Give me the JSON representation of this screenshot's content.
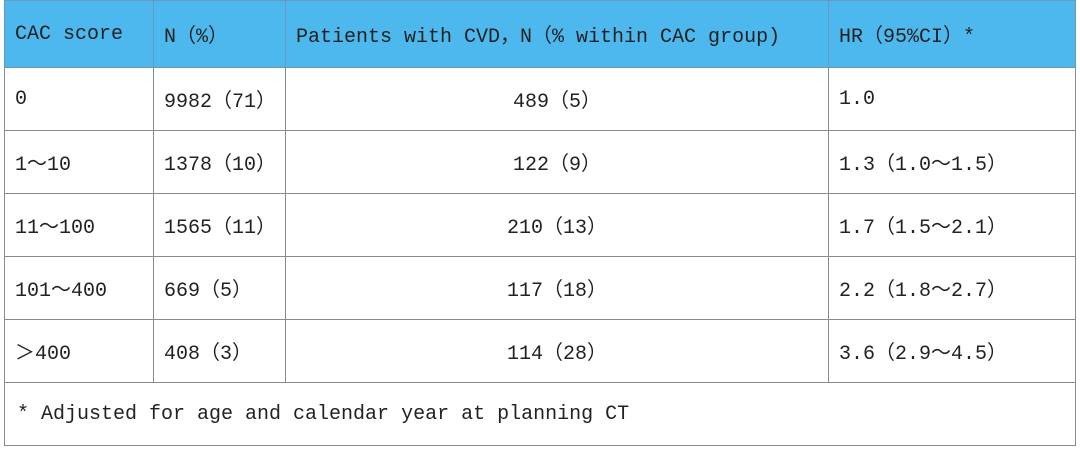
{
  "table": {
    "header": [
      "CAC score",
      "N（%）",
      "Patients with CVD，N（% within CAC group)",
      "HR（95%CI）*"
    ],
    "rows": [
      [
        "0",
        "9982（71）",
        "489（5）",
        "1.0"
      ],
      [
        "1～10",
        "1378（10）",
        "122（9）",
        "1.3（1.0～1.5）"
      ],
      [
        "11～100",
        "1565（11）",
        "210（13）",
        "1.7（1.5～2.1）"
      ],
      [
        "101～400",
        "669（5）",
        "117（18）",
        "2.2（1.8～2.7）"
      ],
      [
        "＞400",
        "408（3）",
        "114（28）",
        "3.6（2.9～4.5）"
      ]
    ],
    "footnote": "* Adjusted for age and calendar year at planning CT"
  }
}
